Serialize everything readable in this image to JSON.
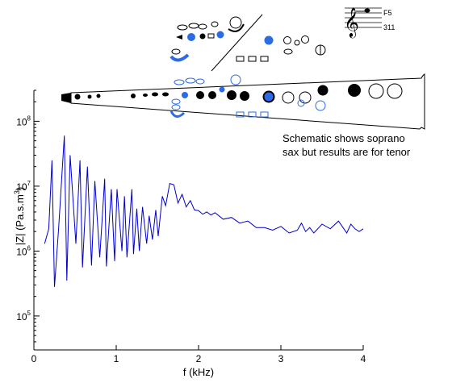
{
  "chart_data": {
    "type": "line",
    "title": "",
    "xlabel": "f (kHz)",
    "ylabel_main": "|Z| (Pa.s.m",
    "ylabel_sup": "3",
    "ylabel_end": ")",
    "log_y": true,
    "xlim": [
      0,
      4
    ],
    "ylim": [
      30000,
      300000000
    ],
    "grid": false,
    "x_ticks": [
      {
        "value": 0,
        "label": "0"
      },
      {
        "value": 1,
        "label": "1"
      },
      {
        "value": 2,
        "label": "2"
      },
      {
        "value": 3,
        "label": "3"
      },
      {
        "value": 4,
        "label": "4"
      }
    ],
    "y_ticks": [
      {
        "value": 100000,
        "base": "10",
        "exp": "5"
      },
      {
        "value": 1000000,
        "base": "10",
        "exp": "6"
      },
      {
        "value": 10000000,
        "base": "10",
        "exp": "7"
      },
      {
        "value": 100000000,
        "base": "10",
        "exp": "8"
      }
    ],
    "series": [
      {
        "color": "#0000cc",
        "x": [
          0.13,
          0.18,
          0.22,
          0.25,
          0.3,
          0.37,
          0.4,
          0.44,
          0.51,
          0.56,
          0.59,
          0.65,
          0.7,
          0.74,
          0.8,
          0.86,
          0.88,
          0.94,
          0.98,
          1.01,
          1.07,
          1.1,
          1.13,
          1.19,
          1.21,
          1.25,
          1.28,
          1.32,
          1.37,
          1.4,
          1.44,
          1.48,
          1.51,
          1.56,
          1.6,
          1.65,
          1.7,
          1.75,
          1.8,
          1.85,
          1.9,
          1.95,
          2.0,
          2.05,
          2.1,
          2.15,
          2.2,
          2.3,
          2.4,
          2.5,
          2.6,
          2.7,
          2.8,
          2.9,
          3.0,
          3.1,
          3.2,
          3.25,
          3.3,
          3.35,
          3.4,
          3.5,
          3.6,
          3.7,
          3.8,
          3.85,
          3.9,
          3.95,
          4.0
        ],
        "y": [
          1300000,
          2200000,
          25000000,
          280000,
          2200000,
          60000000,
          350000,
          30000000,
          1300000,
          25000000,
          560000,
          20000000,
          600000,
          12000000,
          800000,
          13000000,
          580000,
          9000000,
          700000,
          9000000,
          1000000,
          7000000,
          800000,
          9000000,
          900000,
          4500000,
          1000000,
          4800000,
          1300000,
          3500000,
          1500000,
          4300000,
          1700000,
          7000000,
          5000000,
          11000000,
          10500000,
          5500000,
          7500000,
          4800000,
          6000000,
          4300000,
          4200000,
          3700000,
          4000000,
          3600000,
          3900000,
          3100000,
          3300000,
          2700000,
          2900000,
          2300000,
          2300000,
          2100000,
          2400000,
          1900000,
          2100000,
          2700000,
          2000000,
          2300000,
          1900000,
          2600000,
          2200000,
          2900000,
          1900000,
          2600000,
          2200000,
          2000000,
          2200000
        ]
      }
    ]
  },
  "annotation": {
    "line1": "Schematic shows soprano",
    "line2": "sax but results are for tenor"
  },
  "fingering": {
    "note": "F5",
    "number": "311"
  }
}
